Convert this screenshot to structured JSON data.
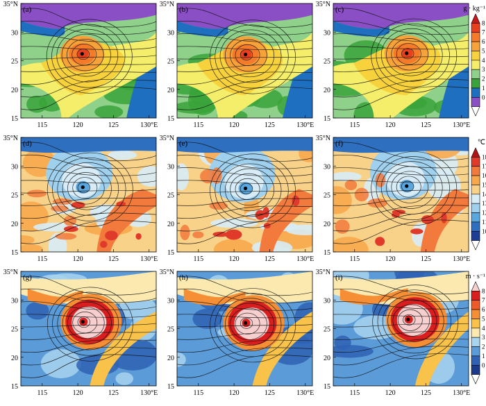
{
  "figure": {
    "colorbars": [
      {
        "id": "q",
        "unit": "g · kg⁻¹",
        "ticks": [
          "8",
          "7",
          "6",
          "5",
          "4",
          "3",
          "2",
          "1",
          "0"
        ],
        "colors": [
          "#c41a1a",
          "#e8401e",
          "#f57a2a",
          "#f8a23a",
          "#f7d23c",
          "#f5ee6a",
          "#8fd18b",
          "#3aa33a",
          "#1f6fc0",
          "#8a4fc4",
          "#ffffff"
        ]
      },
      {
        "id": "t",
        "unit": "℃",
        "ticks": [
          "18",
          "17",
          "16",
          "15",
          "14",
          "13",
          "12",
          "11",
          "10"
        ],
        "colors": [
          "#b01515",
          "#e03a2a",
          "#f27a3c",
          "#f8a84c",
          "#f9d28a",
          "#d7ecf6",
          "#9fd0ee",
          "#5aa6de",
          "#2e6fbf",
          "#1c3e94",
          "#ffffff"
        ]
      },
      {
        "id": "w",
        "unit": "m · s⁻¹",
        "ticks": [
          "8",
          "7",
          "6",
          "5",
          "4",
          "3",
          "2",
          "1",
          "0"
        ],
        "colors": [
          "#f7cfcf",
          "#d81e1e",
          "#ef5a2a",
          "#f58e34",
          "#f9c24a",
          "#fbe9b0",
          "#a9d4ee",
          "#5b9bd8",
          "#2f62b4",
          "#1c3a8a",
          "#ffffff"
        ]
      }
    ],
    "panels": [
      {
        "label": "(a)",
        "row": 0,
        "field": "q",
        "center": [
          120.6,
          26.2
        ],
        "y_label": "35°N"
      },
      {
        "label": "(b)",
        "row": 0,
        "field": "q",
        "center": [
          121.6,
          26.1
        ],
        "y_label": "35°N"
      },
      {
        "label": "(c)",
        "row": 0,
        "field": "q",
        "center": [
          122.3,
          26.3
        ],
        "y_label": "35°N"
      },
      {
        "label": "(d)",
        "row": 1,
        "field": "t",
        "center": [
          120.7,
          26.3
        ],
        "y_label": "35°N"
      },
      {
        "label": "(e)",
        "row": 1,
        "field": "t",
        "center": [
          121.6,
          26.1
        ],
        "y_label": "35°N"
      },
      {
        "label": "(f)",
        "row": 1,
        "field": "t",
        "center": [
          122.3,
          26.5
        ],
        "y_label": "35°N"
      },
      {
        "label": "(g)",
        "row": 2,
        "field": "w",
        "center": [
          120.7,
          26.2
        ],
        "y_label": "35°N"
      },
      {
        "label": "(h)",
        "row": 2,
        "field": "w",
        "center": [
          121.6,
          26.0
        ],
        "y_label": "35°N"
      },
      {
        "label": "(i)",
        "row": 2,
        "field": "w",
        "center": [
          122.5,
          26.6
        ],
        "y_label": "35°N"
      }
    ],
    "x_ticks": [
      "115",
      "120",
      "125",
      "130°E"
    ],
    "y_ticks": [
      "30",
      "25",
      "20",
      "15"
    ]
  },
  "chart_data": {
    "type": "heatmap",
    "xlim": [
      112,
      131
    ],
    "ylim": [
      15,
      35
    ],
    "x_ticks": [
      115,
      120,
      125,
      130
    ],
    "y_ticks": [
      15,
      20,
      25,
      30,
      35
    ],
    "rows": [
      {
        "panels": [
          "(a)",
          "(b)",
          "(c)"
        ],
        "unit": "g · kg⁻¹",
        "levels": [
          0,
          1,
          2,
          3,
          4,
          5,
          6,
          7,
          8
        ]
      },
      {
        "panels": [
          "(d)",
          "(e)",
          "(f)"
        ],
        "unit": "℃",
        "levels": [
          10,
          11,
          12,
          13,
          14,
          15,
          16,
          17,
          18
        ]
      },
      {
        "panels": [
          "(g)",
          "(h)",
          "(i)"
        ],
        "unit": "m · s⁻¹",
        "levels": [
          0,
          1,
          2,
          3,
          4,
          5,
          6,
          7,
          8
        ]
      }
    ],
    "typhoon_centers": [
      [
        120.6,
        26.2
      ],
      [
        121.6,
        26.1
      ],
      [
        122.3,
        26.3
      ],
      [
        120.7,
        26.3
      ],
      [
        121.6,
        26.1
      ],
      [
        122.3,
        26.5
      ],
      [
        120.7,
        26.2
      ],
      [
        121.6,
        26.0
      ],
      [
        122.5,
        26.6
      ]
    ],
    "overlay": "streamlines"
  }
}
